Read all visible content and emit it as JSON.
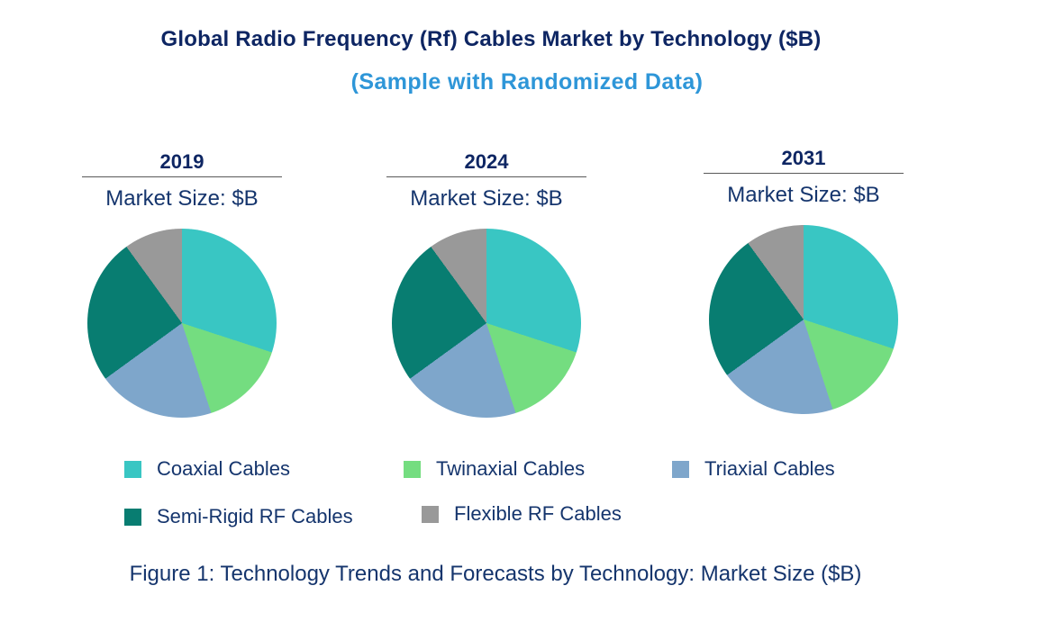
{
  "title": "Global Radio Frequency (Rf) Cables Market by Technology ($B)",
  "subtitle": "(Sample with Randomized Data)",
  "caption": "Figure 1: Technology Trends and Forecasts by Technology: Market Size ($B)",
  "text_colors": {
    "title_navy": "#0E2663",
    "subtitle_blue": "#2E96D8",
    "body_navy": "#15356D"
  },
  "chart_data": {
    "type": "pie",
    "title": "Global Radio Frequency (Rf) Cables Market by Technology ($B)",
    "subtitle": "(Sample with Randomized Data)",
    "legend_position": "bottom",
    "categories": [
      "Coaxial Cables",
      "Twinaxial Cables",
      "Triaxial Cables",
      "Semi-Rigid RF Cables",
      "Flexible RF Cables"
    ],
    "colors": [
      "#39C6C3",
      "#74DD80",
      "#7EA6CB",
      "#087D71",
      "#999999"
    ],
    "pies": [
      {
        "year": "2019",
        "axis_label": "Market Size: $B",
        "values_pct": [
          30,
          15,
          20,
          25,
          10
        ]
      },
      {
        "year": "2024",
        "axis_label": "Market Size: $B",
        "values_pct": [
          30,
          15,
          20,
          25,
          10
        ]
      },
      {
        "year": "2031",
        "axis_label": "Market Size: $B",
        "values_pct": [
          30,
          15,
          20,
          25,
          10
        ]
      }
    ]
  }
}
